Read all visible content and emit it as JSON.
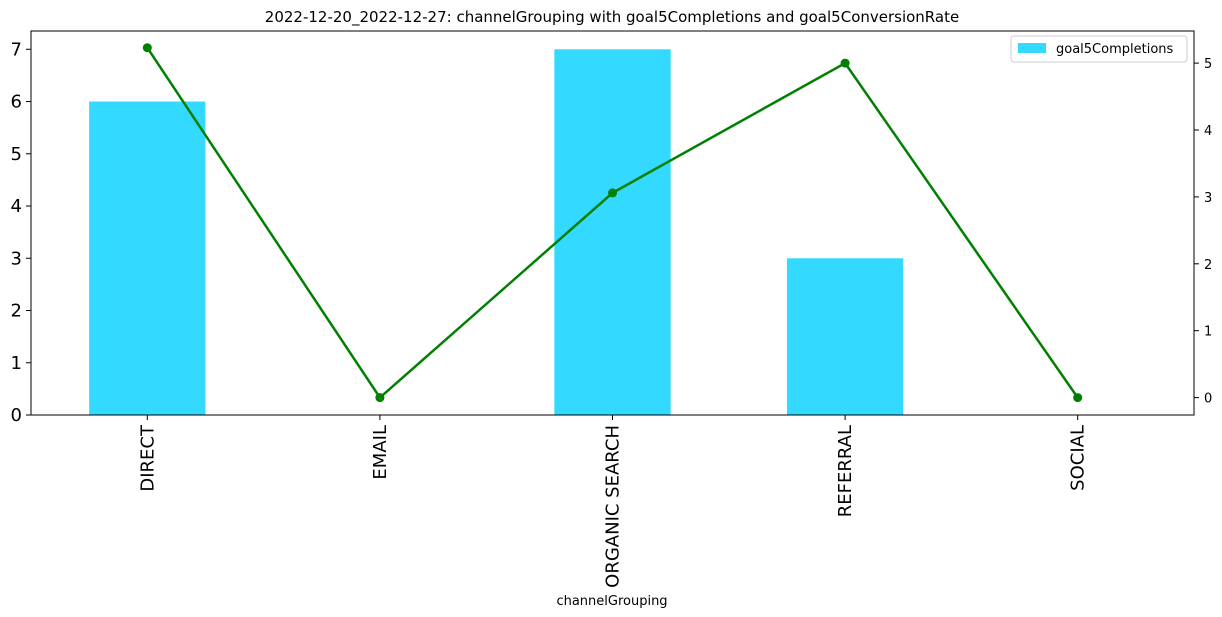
{
  "chart_data": {
    "type": "bar",
    "title": "2022-12-20_2022-12-27: channelGrouping with goal5Completions and goal5ConversionRate",
    "xlabel": "channelGrouping",
    "ylabel": "",
    "categories": [
      "DIRECT",
      "EMAIL",
      "ORGANIC SEARCH",
      "REFERRAL",
      "SOCIAL"
    ],
    "series": [
      {
        "name": "goal5Completions",
        "type": "bar",
        "axis": "left",
        "color": "#33d9ff",
        "values": [
          6,
          0,
          7,
          3,
          0
        ]
      },
      {
        "type": "line",
        "axis": "right",
        "color": "#008000",
        "values": [
          5.23,
          0,
          3.06,
          5.0,
          0
        ]
      }
    ],
    "ylim": [
      0,
      7.35
    ],
    "y_ticks": [
      0,
      1,
      2,
      3,
      4,
      5,
      6,
      7
    ],
    "y2lim": [
      -0.26,
      5.48
    ],
    "y2_ticks": [
      0,
      1,
      2,
      3,
      4,
      5
    ],
    "legend": {
      "placement": "top-right",
      "entries": [
        "goal5Completions"
      ]
    },
    "grid": false
  }
}
